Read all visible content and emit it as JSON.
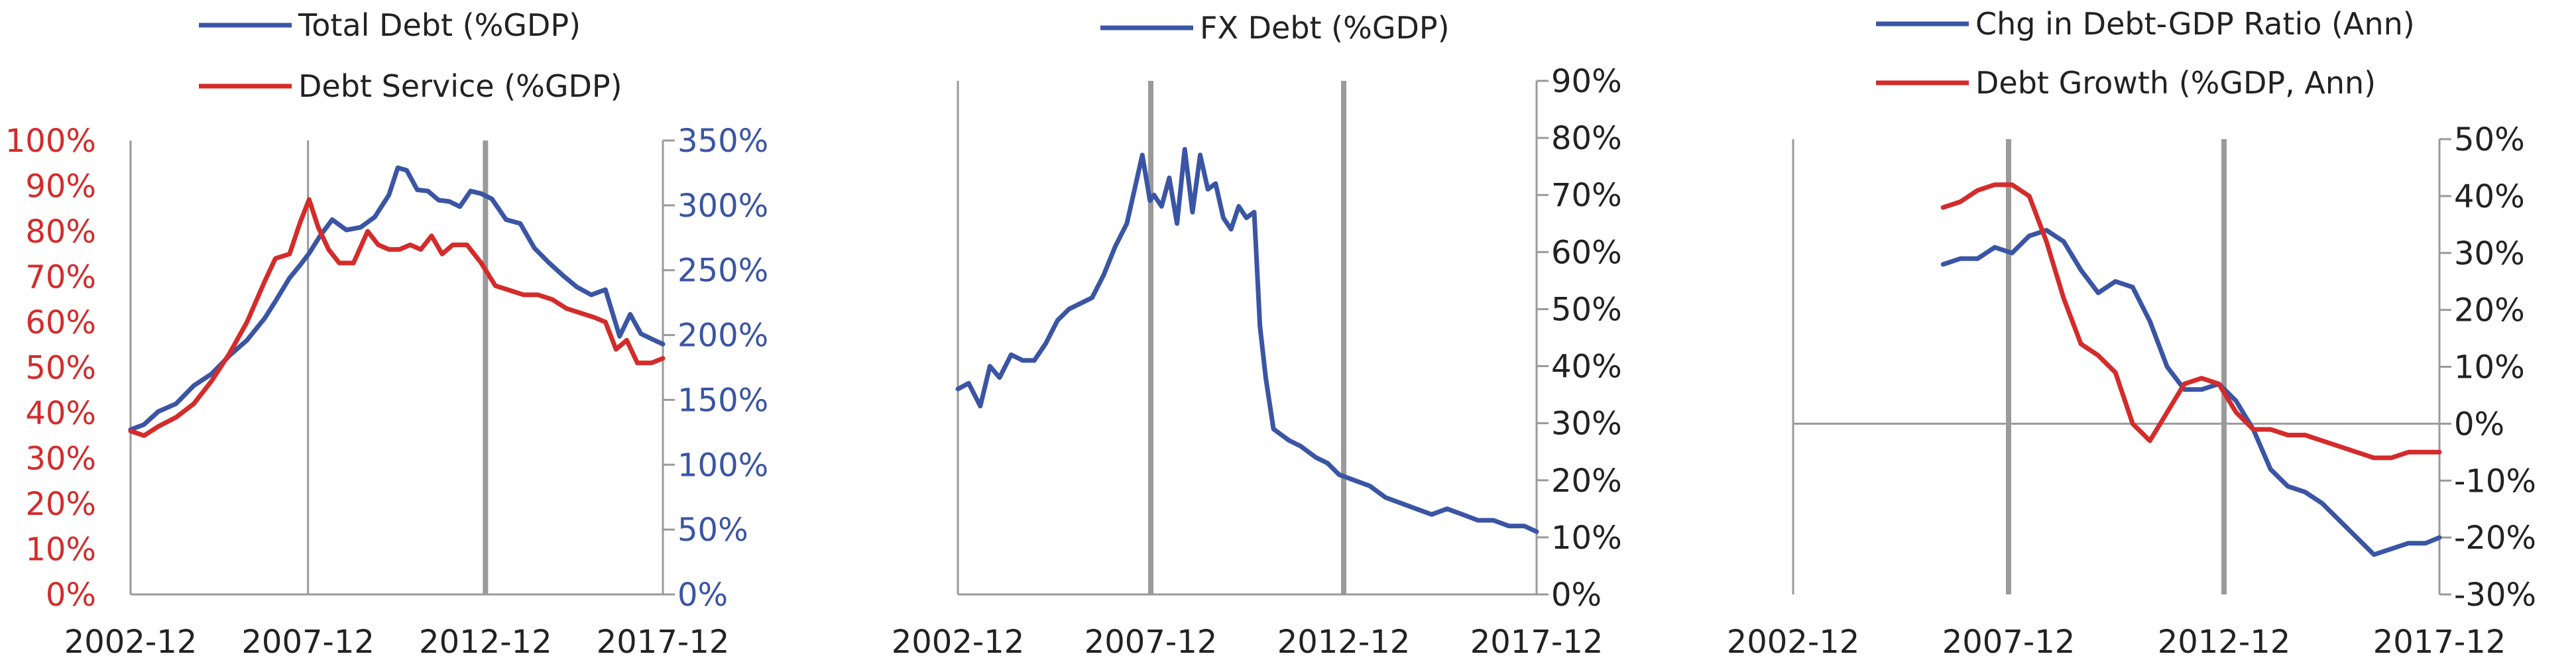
{
  "colors": {
    "blue": "#3a55a4",
    "red": "#d42b2b",
    "axis": "#9a9a9a",
    "text": "#222222"
  },
  "chart_data": [
    {
      "type": "line",
      "title": "",
      "x_ticks": [
        "2002-12",
        "2007-12",
        "2012-12",
        "2017-12"
      ],
      "xlim": [
        2002.92,
        2017.92
      ],
      "left_axis": {
        "ylim": [
          0,
          100
        ],
        "ticks": [
          "0%",
          "10%",
          "20%",
          "30%",
          "40%",
          "50%",
          "60%",
          "70%",
          "80%",
          "90%",
          "100%"
        ]
      },
      "right_axis": {
        "ylim": [
          0,
          350
        ],
        "ticks": [
          "0%",
          "50%",
          "100%",
          "150%",
          "200%",
          "250%",
          "300%",
          "350%"
        ]
      },
      "grid": "vertical",
      "legend_position": "top",
      "series": [
        {
          "name": "Total Debt (%GDP)",
          "axis": "right",
          "color": "blue",
          "x": [
            2002.92,
            2003.3,
            2003.7,
            2004.2,
            2004.7,
            2005.2,
            2005.7,
            2006.2,
            2006.7,
            2007.0,
            2007.4,
            2007.7,
            2007.95,
            2008.25,
            2008.6,
            2009.0,
            2009.4,
            2009.8,
            2010.2,
            2010.45,
            2010.7,
            2011.0,
            2011.3,
            2011.6,
            2011.9,
            2012.2,
            2012.5,
            2012.8,
            2013.1,
            2013.5,
            2013.9,
            2014.3,
            2014.7,
            2015.1,
            2015.5,
            2015.9,
            2016.3,
            2016.7,
            2017.0,
            2017.3,
            2017.6,
            2017.92
          ],
          "y": [
            127,
            131,
            141,
            147,
            161,
            170,
            184,
            196,
            213,
            226,
            244,
            254,
            263,
            276,
            289,
            281,
            283,
            291,
            308,
            329,
            327,
            312,
            311,
            304,
            303,
            299,
            311,
            309,
            305,
            289,
            286,
            267,
            256,
            246,
            237,
            231,
            235,
            199,
            216,
            201,
            197,
            193
          ]
        },
        {
          "name": "Debt Service (%GDP)",
          "axis": "left",
          "color": "red",
          "x": [
            2002.92,
            2003.3,
            2003.7,
            2004.2,
            2004.7,
            2005.2,
            2005.7,
            2006.2,
            2006.7,
            2007.0,
            2007.4,
            2007.7,
            2007.95,
            2008.2,
            2008.5,
            2008.8,
            2009.2,
            2009.6,
            2009.9,
            2010.2,
            2010.5,
            2010.8,
            2011.1,
            2011.4,
            2011.7,
            2012.0,
            2012.4,
            2012.8,
            2013.2,
            2013.6,
            2014.0,
            2014.4,
            2014.8,
            2015.2,
            2015.6,
            2016.0,
            2016.3,
            2016.6,
            2016.9,
            2017.2,
            2017.6,
            2017.92
          ],
          "y": [
            36,
            35,
            37,
            39,
            42,
            47,
            53,
            60,
            69,
            74,
            75,
            82,
            87,
            81,
            76,
            73,
            73,
            80,
            77,
            76,
            76,
            77,
            76,
            79,
            75,
            77,
            77,
            73,
            68,
            67,
            66,
            66,
            65,
            63,
            62,
            61,
            60,
            54,
            56,
            51,
            51,
            52
          ]
        }
      ]
    },
    {
      "type": "line",
      "title": "",
      "x_ticks": [
        "2002-12",
        "2007-12",
        "2012-12",
        "2017-12"
      ],
      "xlim": [
        2002.92,
        2017.92
      ],
      "right_axis": {
        "ylim": [
          0,
          90
        ],
        "ticks": [
          "0%",
          "10%",
          "20%",
          "30%",
          "40%",
          "50%",
          "60%",
          "70%",
          "80%",
          "90%"
        ]
      },
      "grid": "vertical",
      "legend_position": "top",
      "series": [
        {
          "name": "FX Debt (%GDP)",
          "axis": "right",
          "color": "blue",
          "x": [
            2002.92,
            2003.2,
            2003.5,
            2003.75,
            2004.0,
            2004.3,
            2004.6,
            2004.9,
            2005.2,
            2005.5,
            2005.8,
            2006.1,
            2006.4,
            2006.7,
            2007.0,
            2007.3,
            2007.5,
            2007.7,
            2007.9,
            2008.0,
            2008.2,
            2008.4,
            2008.6,
            2008.8,
            2009.0,
            2009.2,
            2009.4,
            2009.6,
            2009.8,
            2010.0,
            2010.2,
            2010.4,
            2010.6,
            2010.75,
            2010.9,
            2011.1,
            2011.3,
            2011.5,
            2011.8,
            2012.2,
            2012.5,
            2012.8,
            2013.2,
            2013.6,
            2014.0,
            2014.4,
            2014.8,
            2015.2,
            2015.6,
            2016.0,
            2016.4,
            2016.8,
            2017.2,
            2017.6,
            2017.92
          ],
          "y": [
            36,
            37,
            33,
            40,
            38,
            42,
            41,
            41,
            44,
            48,
            50,
            51,
            52,
            56,
            61,
            65,
            71,
            77,
            69,
            70,
            68,
            73,
            65,
            78,
            67,
            77,
            71,
            72,
            66,
            64,
            68,
            66,
            67,
            47,
            38,
            29,
            28,
            27,
            26,
            24,
            23,
            21,
            20,
            19,
            17,
            16,
            15,
            14,
            15,
            14,
            13,
            13,
            12,
            12,
            11
          ]
        }
      ]
    },
    {
      "type": "line",
      "title": "",
      "x_ticks": [
        "2002-12",
        "2007-12",
        "2012-12",
        "2017-12"
      ],
      "xlim": [
        2002.92,
        2017.92
      ],
      "right_axis": {
        "ylim": [
          -30,
          50
        ],
        "ticks": [
          "-30%",
          "-20%",
          "-10%",
          "0%",
          "10%",
          "20%",
          "30%",
          "40%",
          "50%"
        ]
      },
      "grid": "vertical",
      "legend_position": "top",
      "series": [
        {
          "name": "Chg in Debt-GDP Ratio (Ann)",
          "axis": "right",
          "color": "blue",
          "x": [
            2006.4,
            2006.8,
            2007.2,
            2007.6,
            2008.0,
            2008.4,
            2008.8,
            2009.2,
            2009.6,
            2010.0,
            2010.4,
            2010.8,
            2011.2,
            2011.6,
            2012.0,
            2012.4,
            2012.8,
            2013.2,
            2013.6,
            2014.0,
            2014.4,
            2014.8,
            2015.2,
            2015.6,
            2016.0,
            2016.4,
            2016.8,
            2017.2,
            2017.6,
            2017.92
          ],
          "y": [
            28,
            29,
            29,
            31,
            30,
            33,
            34,
            32,
            27,
            23,
            25,
            24,
            18,
            10,
            6,
            6,
            7,
            4,
            -1,
            -8,
            -11,
            -12,
            -14,
            -17,
            -20,
            -23,
            -22,
            -21,
            -21,
            -20
          ]
        },
        {
          "name": "Debt Growth (%GDP, Ann)",
          "axis": "right",
          "color": "red",
          "x": [
            2006.4,
            2006.8,
            2007.2,
            2007.6,
            2008.0,
            2008.4,
            2008.8,
            2009.2,
            2009.6,
            2010.0,
            2010.4,
            2010.8,
            2011.2,
            2011.6,
            2012.0,
            2012.4,
            2012.8,
            2013.2,
            2013.6,
            2014.0,
            2014.4,
            2014.8,
            2015.2,
            2015.6,
            2016.0,
            2016.4,
            2016.8,
            2017.2,
            2017.6,
            2017.92
          ],
          "y": [
            38,
            39,
            41,
            42,
            42,
            40,
            32,
            22,
            14,
            12,
            9,
            0,
            -3,
            2,
            7,
            8,
            7,
            2,
            -1,
            -1,
            -2,
            -2,
            -3,
            -4,
            -5,
            -6,
            -6,
            -5,
            -5,
            -5
          ]
        }
      ]
    }
  ]
}
